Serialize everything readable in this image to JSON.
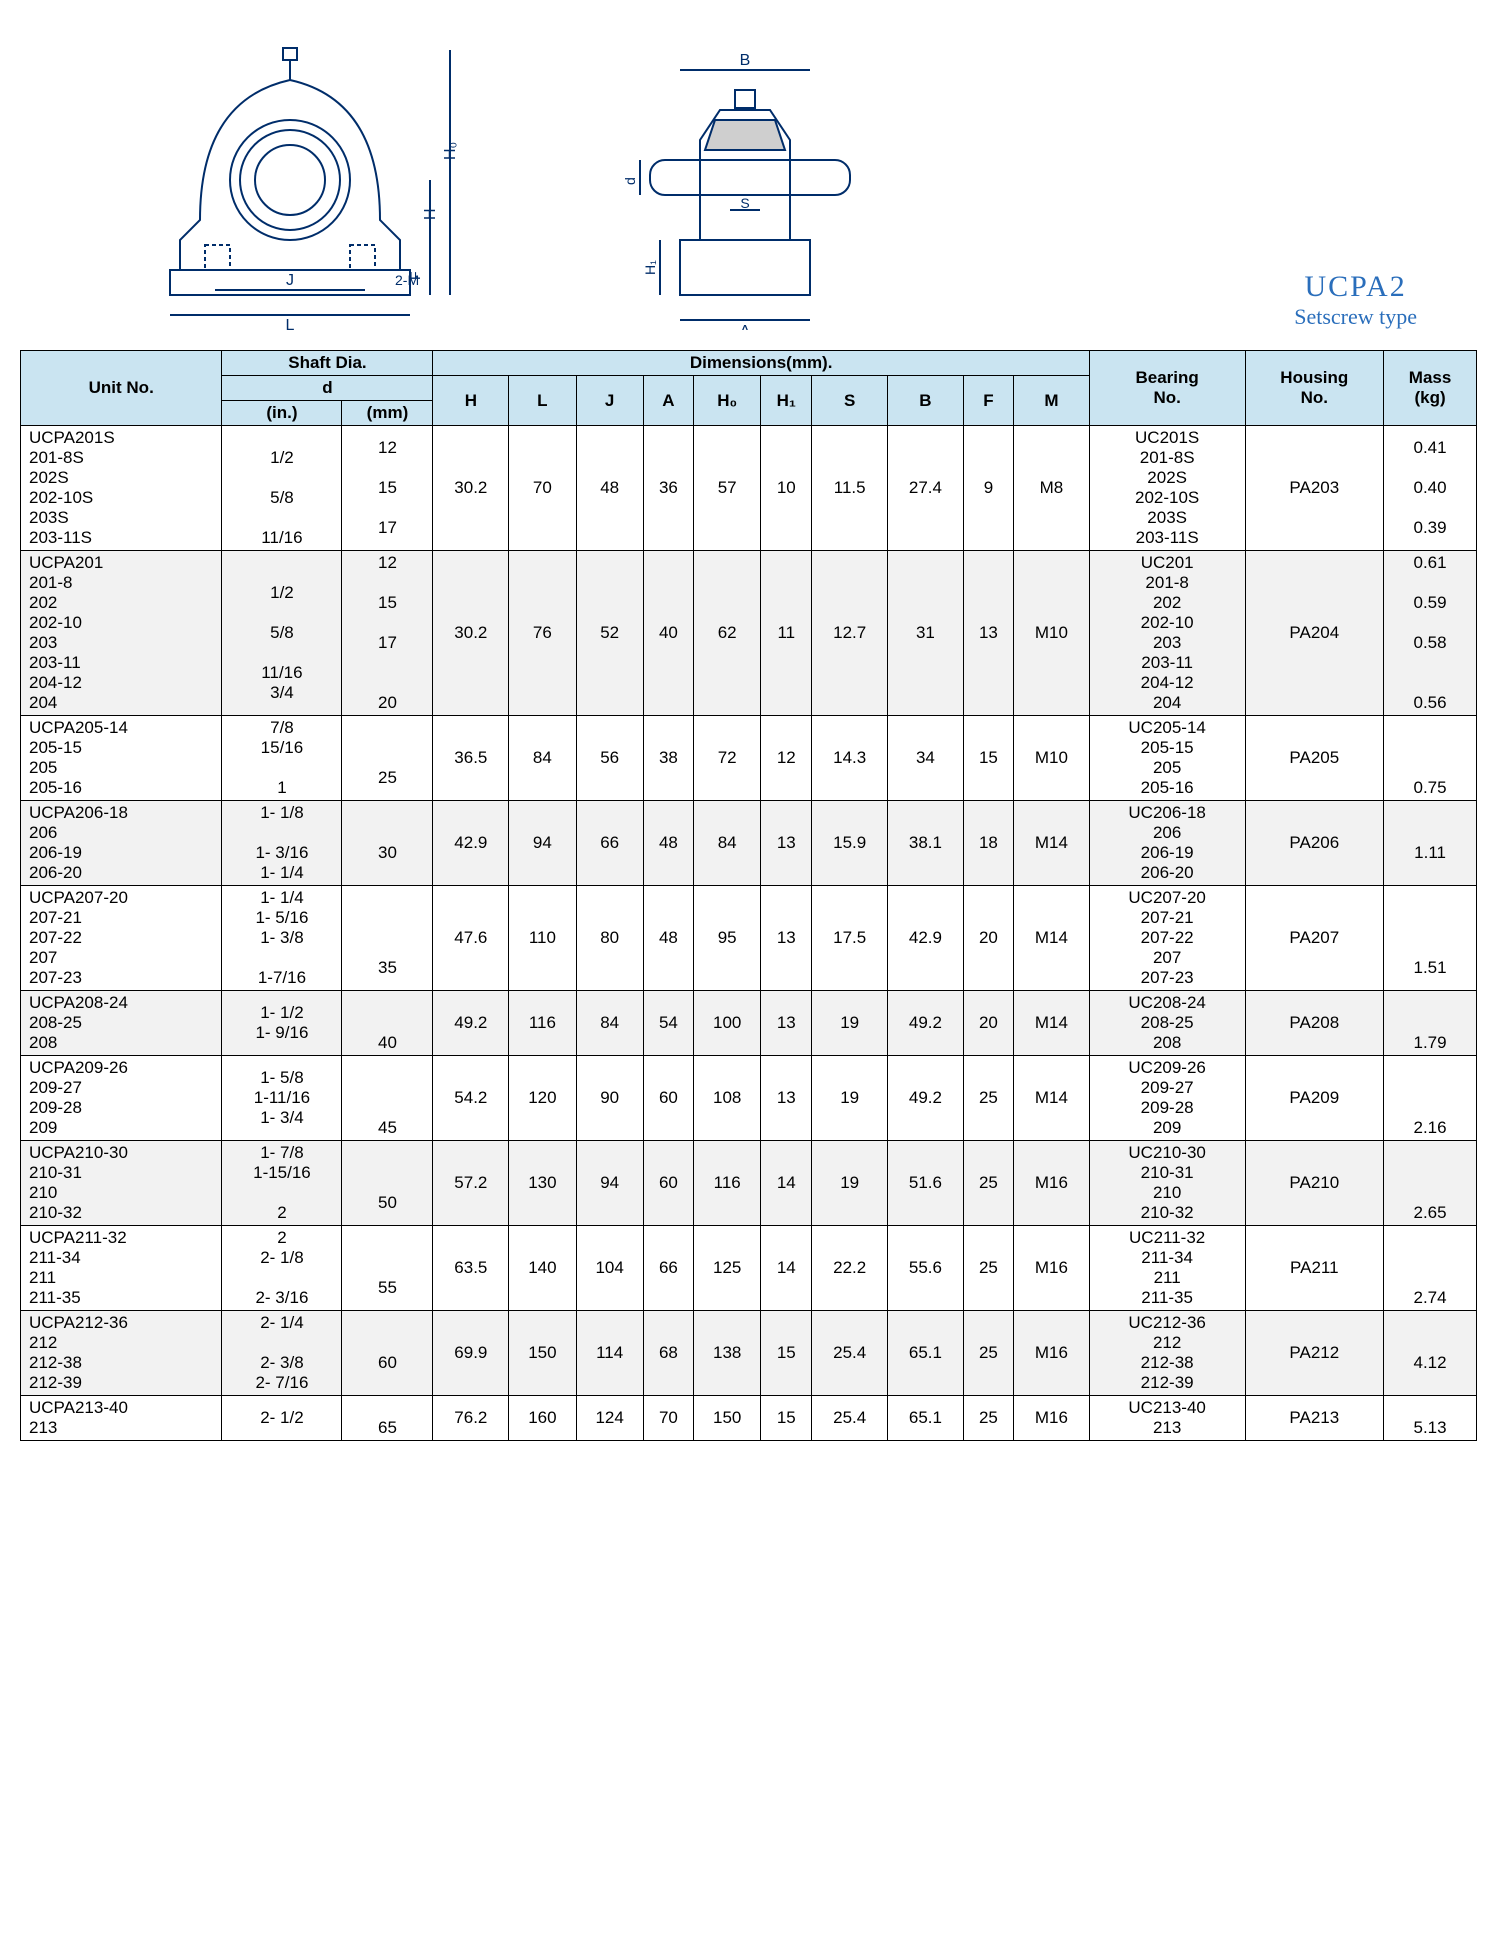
{
  "title": {
    "line1": "UCPA2",
    "line2": "Setscrew type"
  },
  "headers": {
    "unit": "Unit No.",
    "shaft": "Shaft Dia.",
    "d": "d",
    "in": "(in.)",
    "mm": "(mm)",
    "dims": "Dimensions(mm).",
    "H": "H",
    "L": "L",
    "J": "J",
    "A": "A",
    "H0": "H₀",
    "H1": "H₁",
    "S": "S",
    "B": "B",
    "F": "F",
    "M": "M",
    "bearing": "Bearing\nNo.",
    "housing": "Housing\nNo.",
    "mass": "Mass\n(kg)"
  },
  "rows": [
    {
      "unit": "UCPA201S\n      201-8S\n      202S\n      202-10S\n      203S\n      203-11S",
      "in": "\n1/2\n\n5/8\n\n11/16",
      "mm": "12\n\n15\n\n17",
      "H": "30.2",
      "L": "70",
      "J": "48",
      "A": "36",
      "H0": "57",
      "H1": "10",
      "S": "11.5",
      "B": "27.4",
      "F": "9",
      "M": "M8",
      "bearing": "UC201S\n201-8S\n202S\n202-10S\n203S\n203-11S",
      "housing": "PA203",
      "mass": "0.41\n\n0.40\n\n0.39"
    },
    {
      "unit": "UCPA201\n      201-8\n      202\n      202-10\n      203\n      203-11\n      204-12\n      204",
      "in": "\n1/2\n\n5/8\n\n11/16\n3/4",
      "mm": "12\n\n15\n\n17\n\n\n20",
      "H": "30.2",
      "L": "76",
      "J": "52",
      "A": "40",
      "H0": "62",
      "H1": "11",
      "S": "12.7",
      "B": "31",
      "F": "13",
      "M": "M10",
      "bearing": "UC201\n201-8\n202\n202-10\n203\n203-11\n204-12\n204",
      "housing": "PA204",
      "mass": "0.61\n\n0.59\n\n0.58\n\n\n0.56"
    },
    {
      "unit": "UCPA205-14\n      205-15\n      205\n      205-16",
      "in": "7/8\n15/16\n\n1",
      "mm": "\n\n25",
      "H": "36.5",
      "L": "84",
      "J": "56",
      "A": "38",
      "H0": "72",
      "H1": "12",
      "S": "14.3",
      "B": "34",
      "F": "15",
      "M": "M10",
      "bearing": "UC205-14\n205-15\n205\n205-16",
      "housing": "PA205",
      "mass": "\n\n\n0.75"
    },
    {
      "unit": "UCPA206-18\n      206\n      206-19\n      206-20",
      "in": "1- 1/8\n\n1- 3/16\n1- 1/4",
      "mm": "\n30",
      "H": "42.9",
      "L": "94",
      "J": "66",
      "A": "48",
      "H0": "84",
      "H1": "13",
      "S": "15.9",
      "B": "38.1",
      "F": "18",
      "M": "M14",
      "bearing": "UC206-18\n206\n206-19\n206-20",
      "housing": "PA206",
      "mass": "\n1.11"
    },
    {
      "unit": "UCPA207-20\n      207-21\n      207-22\n      207\n      207-23",
      "in": "1- 1/4\n1- 5/16\n1- 3/8\n\n1-7/16",
      "mm": "\n\n\n35",
      "H": "47.6",
      "L": "110",
      "J": "80",
      "A": "48",
      "H0": "95",
      "H1": "13",
      "S": "17.5",
      "B": "42.9",
      "F": "20",
      "M": "M14",
      "bearing": "UC207-20\n207-21\n207-22\n207\n207-23",
      "housing": "PA207",
      "mass": "\n\n\n1.51"
    },
    {
      "unit": "UCPA208-24\n      208-25\n      208",
      "in": "1- 1/2\n1- 9/16",
      "mm": "\n\n40",
      "H": "49.2",
      "L": "116",
      "J": "84",
      "A": "54",
      "H0": "100",
      "H1": "13",
      "S": "19",
      "B": "49.2",
      "F": "20",
      "M": "M14",
      "bearing": "UC208-24\n208-25\n208",
      "housing": "PA208",
      "mass": "\n\n1.79"
    },
    {
      "unit": "UCPA209-26\n      209-27\n      209-28\n      209",
      "in": "1- 5/8\n1-11/16\n1- 3/4",
      "mm": "\n\n\n45",
      "H": "54.2",
      "L": "120",
      "J": "90",
      "A": "60",
      "H0": "108",
      "H1": "13",
      "S": "19",
      "B": "49.2",
      "F": "25",
      "M": "M14",
      "bearing": "UC209-26\n209-27\n209-28\n209",
      "housing": "PA209",
      "mass": "\n\n\n2.16"
    },
    {
      "unit": "UCPA210-30\n      210-31\n      210\n      210-32",
      "in": "1- 7/8\n1-15/16\n\n2",
      "mm": "\n\n50",
      "H": "57.2",
      "L": "130",
      "J": "94",
      "A": "60",
      "H0": "116",
      "H1": "14",
      "S": "19",
      "B": "51.6",
      "F": "25",
      "M": "M16",
      "bearing": "UC210-30\n210-31\n210\n210-32",
      "housing": "PA210",
      "mass": "\n\n\n2.65"
    },
    {
      "unit": "UCPA211-32\n      211-34\n      211\n      211-35",
      "in": "2\n2- 1/8\n\n2- 3/16",
      "mm": "\n\n55",
      "H": "63.5",
      "L": "140",
      "J": "104",
      "A": "66",
      "H0": "125",
      "H1": "14",
      "S": "22.2",
      "B": "55.6",
      "F": "25",
      "M": "M16",
      "bearing": "UC211-32\n211-34\n211\n211-35",
      "housing": "PA211",
      "mass": "\n\n\n2.74"
    },
    {
      "unit": "UCPA212-36\n      212\n      212-38\n      212-39",
      "in": "2- 1/4\n\n2- 3/8\n2- 7/16",
      "mm": "\n60",
      "H": "69.9",
      "L": "150",
      "J": "114",
      "A": "68",
      "H0": "138",
      "H1": "15",
      "S": "25.4",
      "B": "65.1",
      "F": "25",
      "M": "M16",
      "bearing": "UC212-36\n212\n212-38\n212-39",
      "housing": "PA212",
      "mass": "\n4.12"
    },
    {
      "unit": "UCPA213-40\n      213",
      "in": "2- 1/2",
      "mm": "\n65",
      "H": "76.2",
      "L": "160",
      "J": "124",
      "A": "70",
      "H0": "150",
      "H1": "15",
      "S": "25.4",
      "B": "65.1",
      "F": "25",
      "M": "M16",
      "bearing": "UC213-40\n213",
      "housing": "PA213",
      "mass": "\n5.13"
    }
  ]
}
